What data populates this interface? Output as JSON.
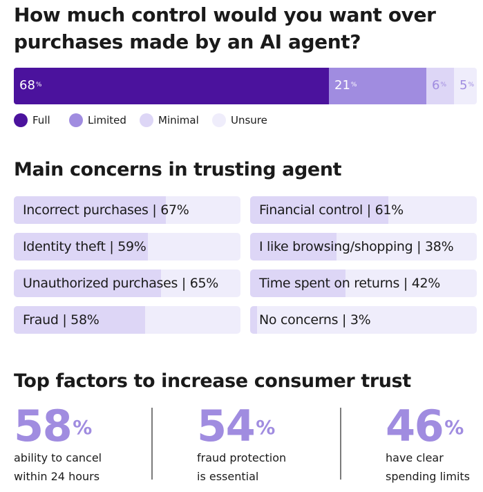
{
  "control": {
    "title": "How much control would you want over purchases made by an AI agent?",
    "title_line1": "How much control would you want over",
    "title_line2": "purchases made by an AI agent?",
    "segments": [
      {
        "name": "Full",
        "value": 68,
        "label": "68",
        "pct": "%",
        "color": "#4b129d",
        "text_color": "#ffffff"
      },
      {
        "name": "Limited",
        "value": 21,
        "label": "21",
        "pct": "%",
        "color": "#a08ce0",
        "text_color": "#ffffff"
      },
      {
        "name": "Minimal",
        "value": 6,
        "label": "6",
        "pct": "%",
        "color": "#ddd6f6",
        "text_color": "#a08ce0"
      },
      {
        "name": "Unsure",
        "value": 5,
        "label": "5",
        "pct": "%",
        "color": "#efedfb",
        "text_color": "#a08ce0"
      }
    ]
  },
  "concerns": {
    "title": "Main concerns in trusting agent",
    "items": [
      {
        "label": "Incorrect purchases | 67%",
        "value": 67
      },
      {
        "label": "Financial control | 61%",
        "value": 61
      },
      {
        "label": "Identity theft | 59%",
        "value": 59
      },
      {
        "label": "I like browsing/shopping | 38%",
        "value": 38
      },
      {
        "label": "Unauthorized purchases | 65%",
        "value": 65
      },
      {
        "label": "Time spent on returns | 42%",
        "value": 42
      },
      {
        "label": "Fraud | 58%",
        "value": 58
      },
      {
        "label": "No concerns | 3%",
        "value": 3
      }
    ]
  },
  "factors": {
    "title": "Top factors to increase consumer trust",
    "items": [
      {
        "number": "58",
        "pct": "%",
        "line1": "ability to cancel",
        "line2": "within 24 hours"
      },
      {
        "number": "54",
        "pct": "%",
        "line1": "fraud protection",
        "line2": "is essential"
      },
      {
        "number": "46",
        "pct": "%",
        "line1": "have clear",
        "line2": "spending limits"
      }
    ]
  },
  "chart_data": [
    {
      "type": "bar",
      "orientation": "horizontal-stacked",
      "title": "How much control would you want over purchases made by an AI agent?",
      "categories": [
        "Full",
        "Limited",
        "Minimal",
        "Unsure"
      ],
      "values": [
        68,
        21,
        6,
        5
      ],
      "unit": "%",
      "legend": "bottom"
    },
    {
      "type": "bar",
      "orientation": "horizontal",
      "title": "Main concerns in trusting agent",
      "categories": [
        "Incorrect purchases",
        "Financial control",
        "Identity theft",
        "I like browsing/shopping",
        "Unauthorized purchases",
        "Time spent on returns",
        "Fraud",
        "No concerns"
      ],
      "values": [
        67,
        61,
        59,
        38,
        65,
        42,
        58,
        3
      ],
      "unit": "%"
    },
    {
      "type": "table",
      "title": "Top factors to increase consumer trust",
      "categories": [
        "ability to cancel within 24 hours",
        "fraud protection is essential",
        "have clear spending limits"
      ],
      "values": [
        58,
        54,
        46
      ],
      "unit": "%"
    }
  ]
}
